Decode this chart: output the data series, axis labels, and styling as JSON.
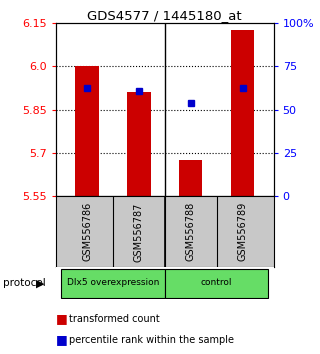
{
  "title": "GDS4577 / 1445180_at",
  "samples": [
    "GSM556786",
    "GSM556787",
    "GSM556788",
    "GSM556789"
  ],
  "red_values": [
    6.0,
    5.91,
    5.675,
    6.125
  ],
  "blue_values": [
    5.925,
    5.915,
    5.875,
    5.925
  ],
  "ylim": [
    5.55,
    6.15
  ],
  "yticks_left": [
    5.55,
    5.7,
    5.85,
    6.0,
    6.15
  ],
  "yticks_right": [
    0,
    25,
    50,
    75,
    100
  ],
  "ytick_labels_right": [
    "0",
    "25",
    "50",
    "75",
    "100%"
  ],
  "bar_width": 0.45,
  "bar_bottom": 5.55,
  "group_labels": [
    "Dlx5 overexpression",
    "control"
  ],
  "protocol_label": "protocol",
  "red_color": "#cc0000",
  "blue_color": "#0000cc",
  "bg_color": "#ffffff",
  "label_area_bg": "#c8c8c8",
  "group_bg": "#66dd66"
}
